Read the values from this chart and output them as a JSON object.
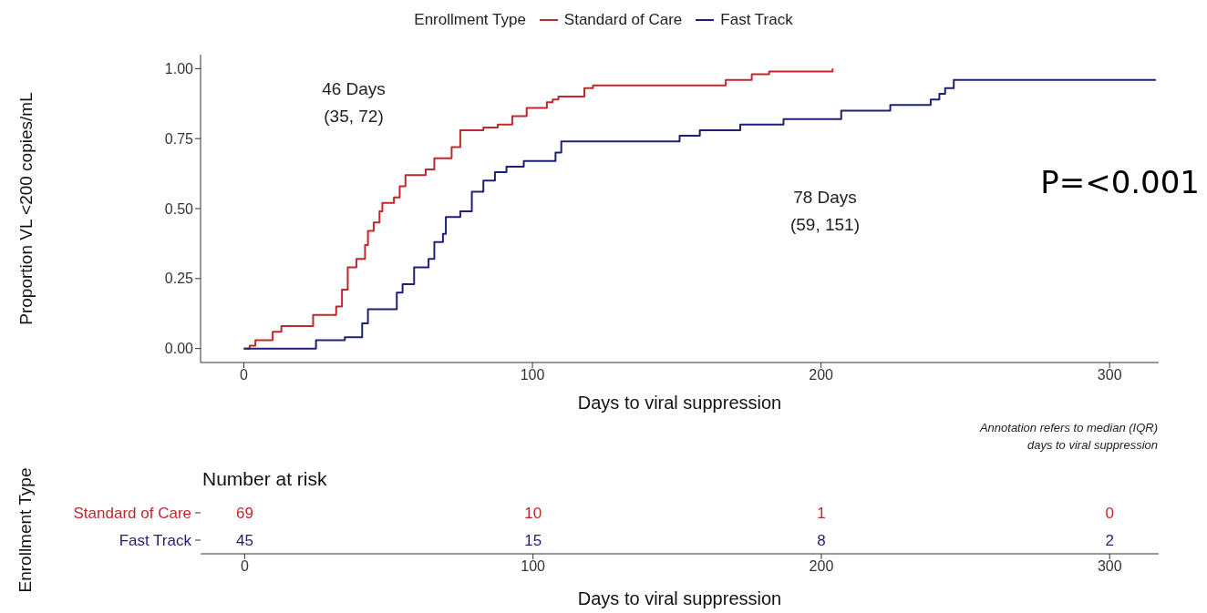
{
  "chart_data": [
    {
      "type": "step",
      "xlabel": "Days to viral suppression",
      "ylabel": "Proportion VL <200 copies/mL",
      "legend_title": "Enrollment Type",
      "legend": "top",
      "xlim": [
        -15,
        317
      ],
      "xticks": [
        0,
        100,
        200,
        300
      ],
      "ylim": [
        -0.05,
        1.05
      ],
      "yticks": [
        {
          "value": 0,
          "label": "0.00"
        },
        {
          "value": 0.25,
          "label": "0.25"
        },
        {
          "value": 0.5,
          "label": "0.50"
        },
        {
          "value": 0.75,
          "label": "0.75"
        },
        {
          "value": 1,
          "label": "1.00"
        }
      ],
      "series": [
        {
          "name": "Standard of Care",
          "color": "#c0282d",
          "x": [
            0,
            2,
            4,
            10,
            13,
            24,
            32,
            34,
            36,
            39,
            42,
            43,
            45,
            47,
            48,
            52,
            54,
            56,
            63,
            66,
            72,
            75,
            83,
            88,
            93,
            98,
            105,
            107,
            109,
            118,
            121,
            167,
            176,
            182,
            204
          ],
          "values": [
            0,
            0.01,
            0.03,
            0.06,
            0.08,
            0.12,
            0.15,
            0.21,
            0.29,
            0.32,
            0.37,
            0.42,
            0.45,
            0.49,
            0.52,
            0.54,
            0.58,
            0.62,
            0.64,
            0.68,
            0.72,
            0.78,
            0.79,
            0.8,
            0.83,
            0.86,
            0.88,
            0.89,
            0.9,
            0.93,
            0.94,
            0.96,
            0.98,
            0.99,
            1
          ]
        },
        {
          "name": "Fast Track",
          "color": "#1f1f73",
          "x": [
            0,
            25,
            35,
            41,
            43,
            53,
            55,
            59,
            64,
            66,
            69,
            70,
            75,
            79,
            83,
            87,
            91,
            97,
            108,
            110,
            151,
            158,
            172,
            187,
            207,
            224,
            238,
            241,
            243,
            246,
            316
          ],
          "values": [
            0,
            0.03,
            0.04,
            0.09,
            0.14,
            0.2,
            0.23,
            0.29,
            0.32,
            0.38,
            0.41,
            0.47,
            0.49,
            0.56,
            0.6,
            0.63,
            0.65,
            0.67,
            0.7,
            0.74,
            0.76,
            0.78,
            0.8,
            0.82,
            0.85,
            0.87,
            0.89,
            0.91,
            0.93,
            0.96,
            0.96
          ]
        }
      ],
      "annotations": [
        "46 Days\n(35, 72)",
        "78 Days\n(59, 151)",
        "P=<0.001",
        "Annotation refers to median (IQR)\ndays to viral suppression"
      ]
    },
    {
      "type": "heatmap",
      "title": "Number at risk",
      "xlabel": "Days to viral suppression",
      "ylabel": "Enrollment Type",
      "categories": [
        "0",
        "100",
        "200",
        "300"
      ],
      "y_categories": [
        "Standard of Care",
        "Fast Track"
      ],
      "data_labels": true,
      "cells": [
        [
          69,
          10,
          1,
          0
        ],
        [
          45,
          15,
          8,
          2
        ]
      ]
    }
  ]
}
